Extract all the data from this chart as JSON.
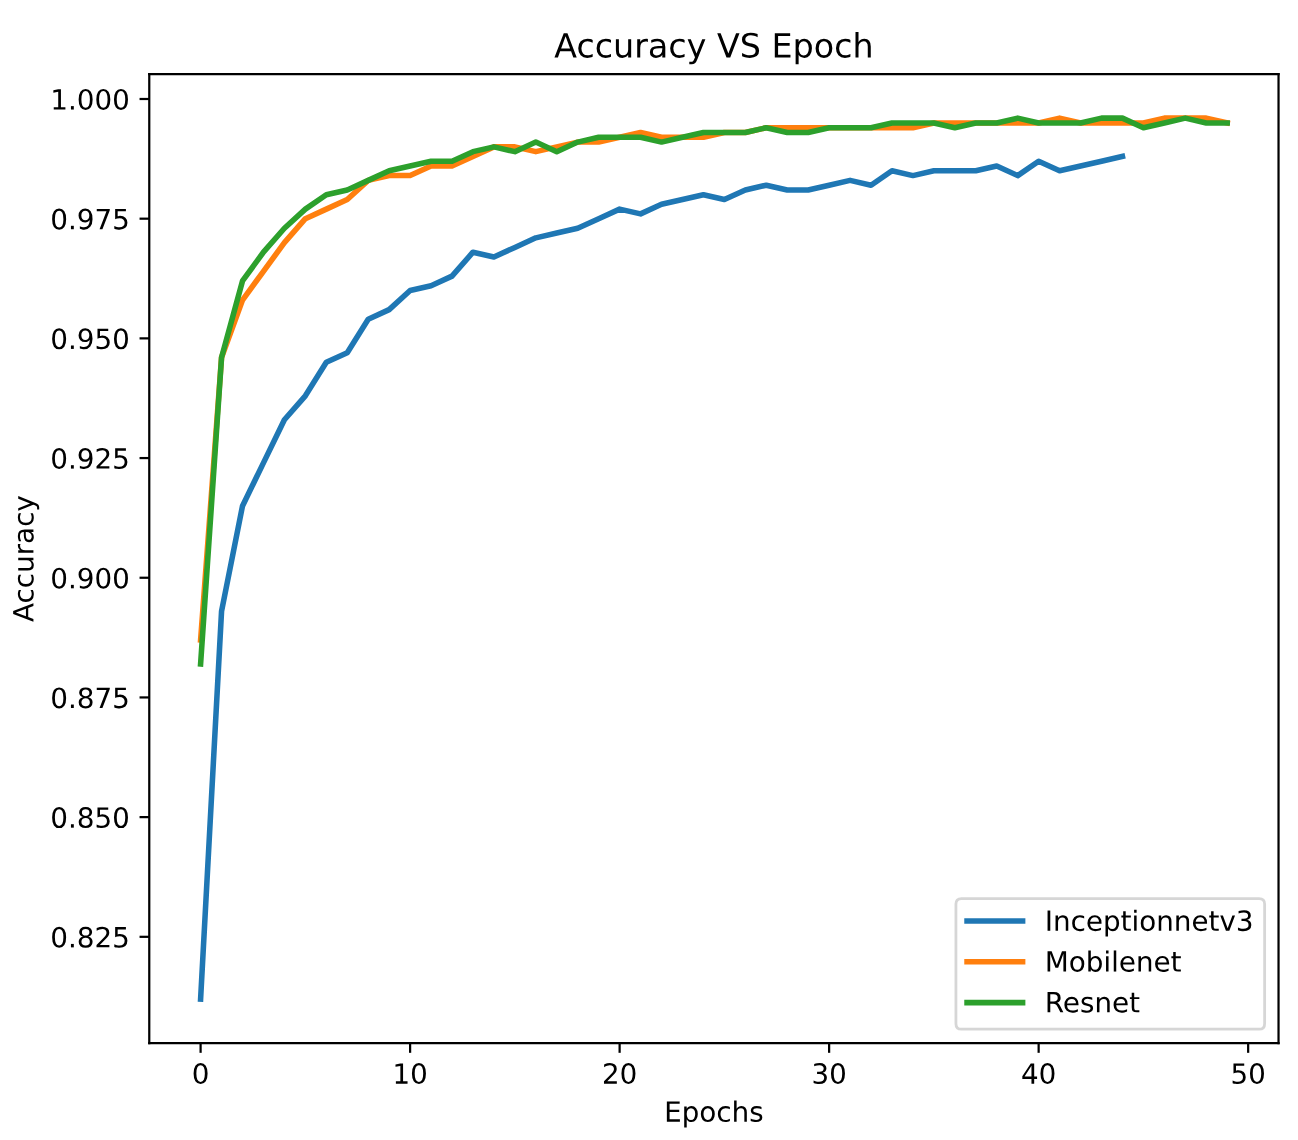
{
  "chart_data": {
    "type": "line",
    "title": "Accuracy VS Epoch",
    "xlabel": "Epochs",
    "ylabel": "Accuracy",
    "x": [
      0,
      1,
      2,
      3,
      4,
      5,
      6,
      7,
      8,
      9,
      10,
      11,
      12,
      13,
      14,
      15,
      16,
      17,
      18,
      19,
      20,
      21,
      22,
      23,
      24,
      25,
      26,
      27,
      28,
      29,
      30,
      31,
      32,
      33,
      34,
      35,
      36,
      37,
      38,
      39,
      40,
      41,
      42,
      43,
      44,
      45,
      46,
      47,
      48,
      49
    ],
    "series": [
      {
        "name": "Inceptionnetv3",
        "color": "#1f77b4",
        "x": [
          0,
          1,
          2,
          3,
          4,
          5,
          6,
          7,
          8,
          9,
          10,
          11,
          12,
          13,
          14,
          15,
          16,
          17,
          18,
          19,
          20,
          21,
          22,
          23,
          24,
          25,
          26,
          27,
          28,
          29,
          30,
          31,
          32,
          33,
          34,
          35,
          36,
          37,
          38,
          39,
          40,
          41,
          42,
          43,
          44
        ],
        "values": [
          0.812,
          0.893,
          0.915,
          0.924,
          0.933,
          0.938,
          0.945,
          0.947,
          0.954,
          0.956,
          0.96,
          0.961,
          0.963,
          0.968,
          0.967,
          0.969,
          0.971,
          0.972,
          0.973,
          0.975,
          0.977,
          0.976,
          0.978,
          0.979,
          0.98,
          0.979,
          0.981,
          0.982,
          0.981,
          0.981,
          0.982,
          0.983,
          0.982,
          0.985,
          0.984,
          0.985,
          0.985,
          0.985,
          0.986,
          0.984,
          0.987,
          0.985,
          0.986,
          0.987,
          0.988
        ]
      },
      {
        "name": "Mobilenet",
        "color": "#ff7f0e",
        "values": [
          0.887,
          0.946,
          0.958,
          0.964,
          0.97,
          0.975,
          0.977,
          0.979,
          0.983,
          0.984,
          0.984,
          0.986,
          0.986,
          0.988,
          0.99,
          0.99,
          0.989,
          0.99,
          0.991,
          0.991,
          0.992,
          0.993,
          0.992,
          0.992,
          0.992,
          0.993,
          0.993,
          0.994,
          0.994,
          0.994,
          0.994,
          0.994,
          0.994,
          0.994,
          0.994,
          0.995,
          0.995,
          0.995,
          0.995,
          0.995,
          0.995,
          0.996,
          0.995,
          0.995,
          0.995,
          0.995,
          0.996,
          0.996,
          0.996,
          0.995
        ]
      },
      {
        "name": "Resnet",
        "color": "#2ca02c",
        "values": [
          0.882,
          0.946,
          0.962,
          0.968,
          0.973,
          0.977,
          0.98,
          0.981,
          0.983,
          0.985,
          0.986,
          0.987,
          0.987,
          0.989,
          0.99,
          0.989,
          0.991,
          0.989,
          0.991,
          0.992,
          0.992,
          0.992,
          0.991,
          0.992,
          0.993,
          0.993,
          0.993,
          0.994,
          0.993,
          0.993,
          0.994,
          0.994,
          0.994,
          0.995,
          0.995,
          0.995,
          0.994,
          0.995,
          0.995,
          0.996,
          0.995,
          0.995,
          0.995,
          0.996,
          0.996,
          0.994,
          0.995,
          0.996,
          0.995,
          0.995
        ]
      }
    ],
    "xlim": [
      -2.45,
      51.45
    ],
    "ylim": [
      0.8028,
      1.0052
    ],
    "xticks": [
      0,
      10,
      20,
      30,
      40,
      50
    ],
    "yticks": [
      {
        "value": 0.825,
        "label": "0.825"
      },
      {
        "value": 0.85,
        "label": "0.850"
      },
      {
        "value": 0.875,
        "label": "0.875"
      },
      {
        "value": 0.9,
        "label": "0.900"
      },
      {
        "value": 0.925,
        "label": "0.925"
      },
      {
        "value": 0.95,
        "label": "0.950"
      },
      {
        "value": 0.975,
        "label": "0.975"
      },
      {
        "value": 1.0,
        "label": "1.000"
      }
    ],
    "legend": "bottom right",
    "marker": "none",
    "line_style": "solid"
  }
}
